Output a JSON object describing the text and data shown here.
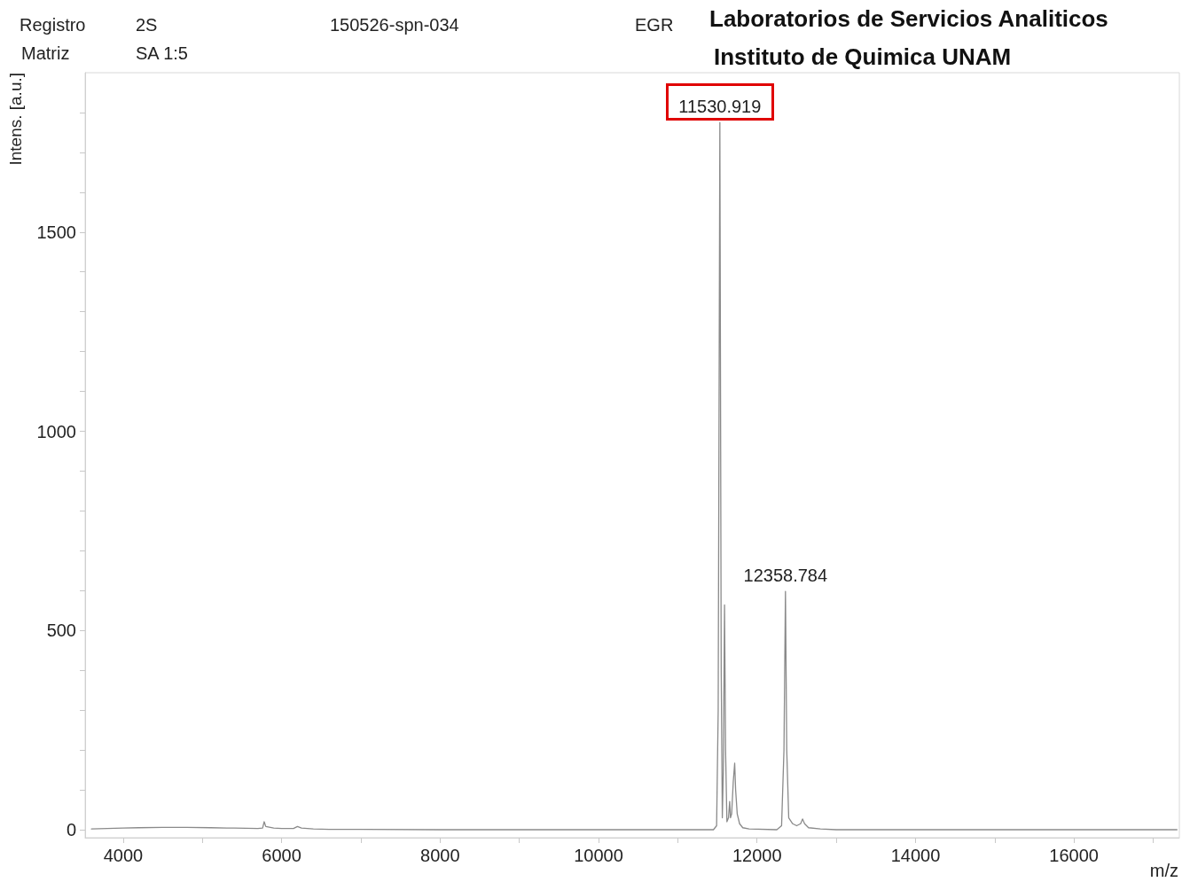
{
  "chart_data": {
    "type": "line",
    "title": "Laboratorios de Servicios Analiticos",
    "subtitle": "Instituto de Quimica UNAM",
    "xlabel": "m/z",
    "ylabel": "Intens. [a.u.]",
    "annotations": [
      "Registro",
      "2S",
      "150526-spn-034",
      "EGR",
      "Matriz",
      "SA 1:5",
      {
        "text": "11530.919",
        "x": 11530.919,
        "y": 1775
      },
      {
        "text": "12358.784",
        "x": 12358.784,
        "y": 598
      }
    ],
    "series": [
      {
        "color": "#8a8a8a",
        "x": [
          3600,
          3800,
          4000,
          4200,
          4500,
          4800,
          5100,
          5400,
          5700,
          5760,
          5780,
          5800,
          5900,
          6000,
          6150,
          6200,
          6250,
          6400,
          6600,
          7000,
          8000,
          9000,
          10000,
          11000,
          11450,
          11490,
          11510,
          11530.919,
          11548,
          11562,
          11575,
          11590,
          11603,
          11620,
          11640,
          11655,
          11665,
          11680,
          11700,
          11718,
          11730,
          11750,
          11780,
          11820,
          11900,
          12250,
          12310,
          12340,
          12358.784,
          12375,
          12400,
          12450,
          12500,
          12550,
          12575,
          12600,
          12650,
          12800,
          13000,
          17300
        ],
        "values": [
          2,
          3,
          4,
          5,
          6,
          6,
          5,
          4,
          3,
          4,
          20,
          8,
          4,
          3,
          3,
          8,
          4,
          2,
          1,
          1,
          0,
          0,
          0,
          0,
          0,
          10,
          300,
          1775,
          400,
          30,
          150,
          564,
          200,
          20,
          30,
          71,
          30,
          40,
          120,
          167,
          100,
          40,
          15,
          5,
          2,
          0,
          10,
          200,
          598,
          200,
          30,
          15,
          10,
          15,
          27,
          15,
          5,
          2,
          0,
          0
        ]
      }
    ],
    "xlim": [
      3520,
      17330
    ],
    "xticks": [
      4000,
      {
        "value": 5000,
        "label": null
      },
      6000,
      {
        "value": 7000,
        "label": null
      },
      8000,
      {
        "value": 9000,
        "label": null
      },
      10000,
      {
        "value": 11000,
        "label": null
      },
      12000,
      {
        "value": 13000,
        "label": null
      },
      14000,
      {
        "value": 15000,
        "label": null
      },
      16000,
      {
        "value": 17000,
        "label": null
      }
    ],
    "ylim": [
      -20,
      1900
    ],
    "yticks": [
      0,
      {
        "value": 100,
        "label": null
      },
      {
        "value": 200,
        "label": null
      },
      {
        "value": 300,
        "label": null
      },
      {
        "value": 400,
        "label": null
      },
      500,
      {
        "value": 600,
        "label": null
      },
      {
        "value": 700,
        "label": null
      },
      {
        "value": 800,
        "label": null
      },
      {
        "value": 900,
        "label": null
      },
      1000,
      {
        "value": 1100,
        "label": null
      },
      {
        "value": 1200,
        "label": null
      },
      {
        "value": 1300,
        "label": null
      },
      {
        "value": 1400,
        "label": null
      },
      1500,
      {
        "value": 1600,
        "label": null
      },
      {
        "value": 1700,
        "label": null
      },
      {
        "value": 1800,
        "label": null
      }
    ],
    "grid": false,
    "marker": "none",
    "line_style": "solid"
  }
}
